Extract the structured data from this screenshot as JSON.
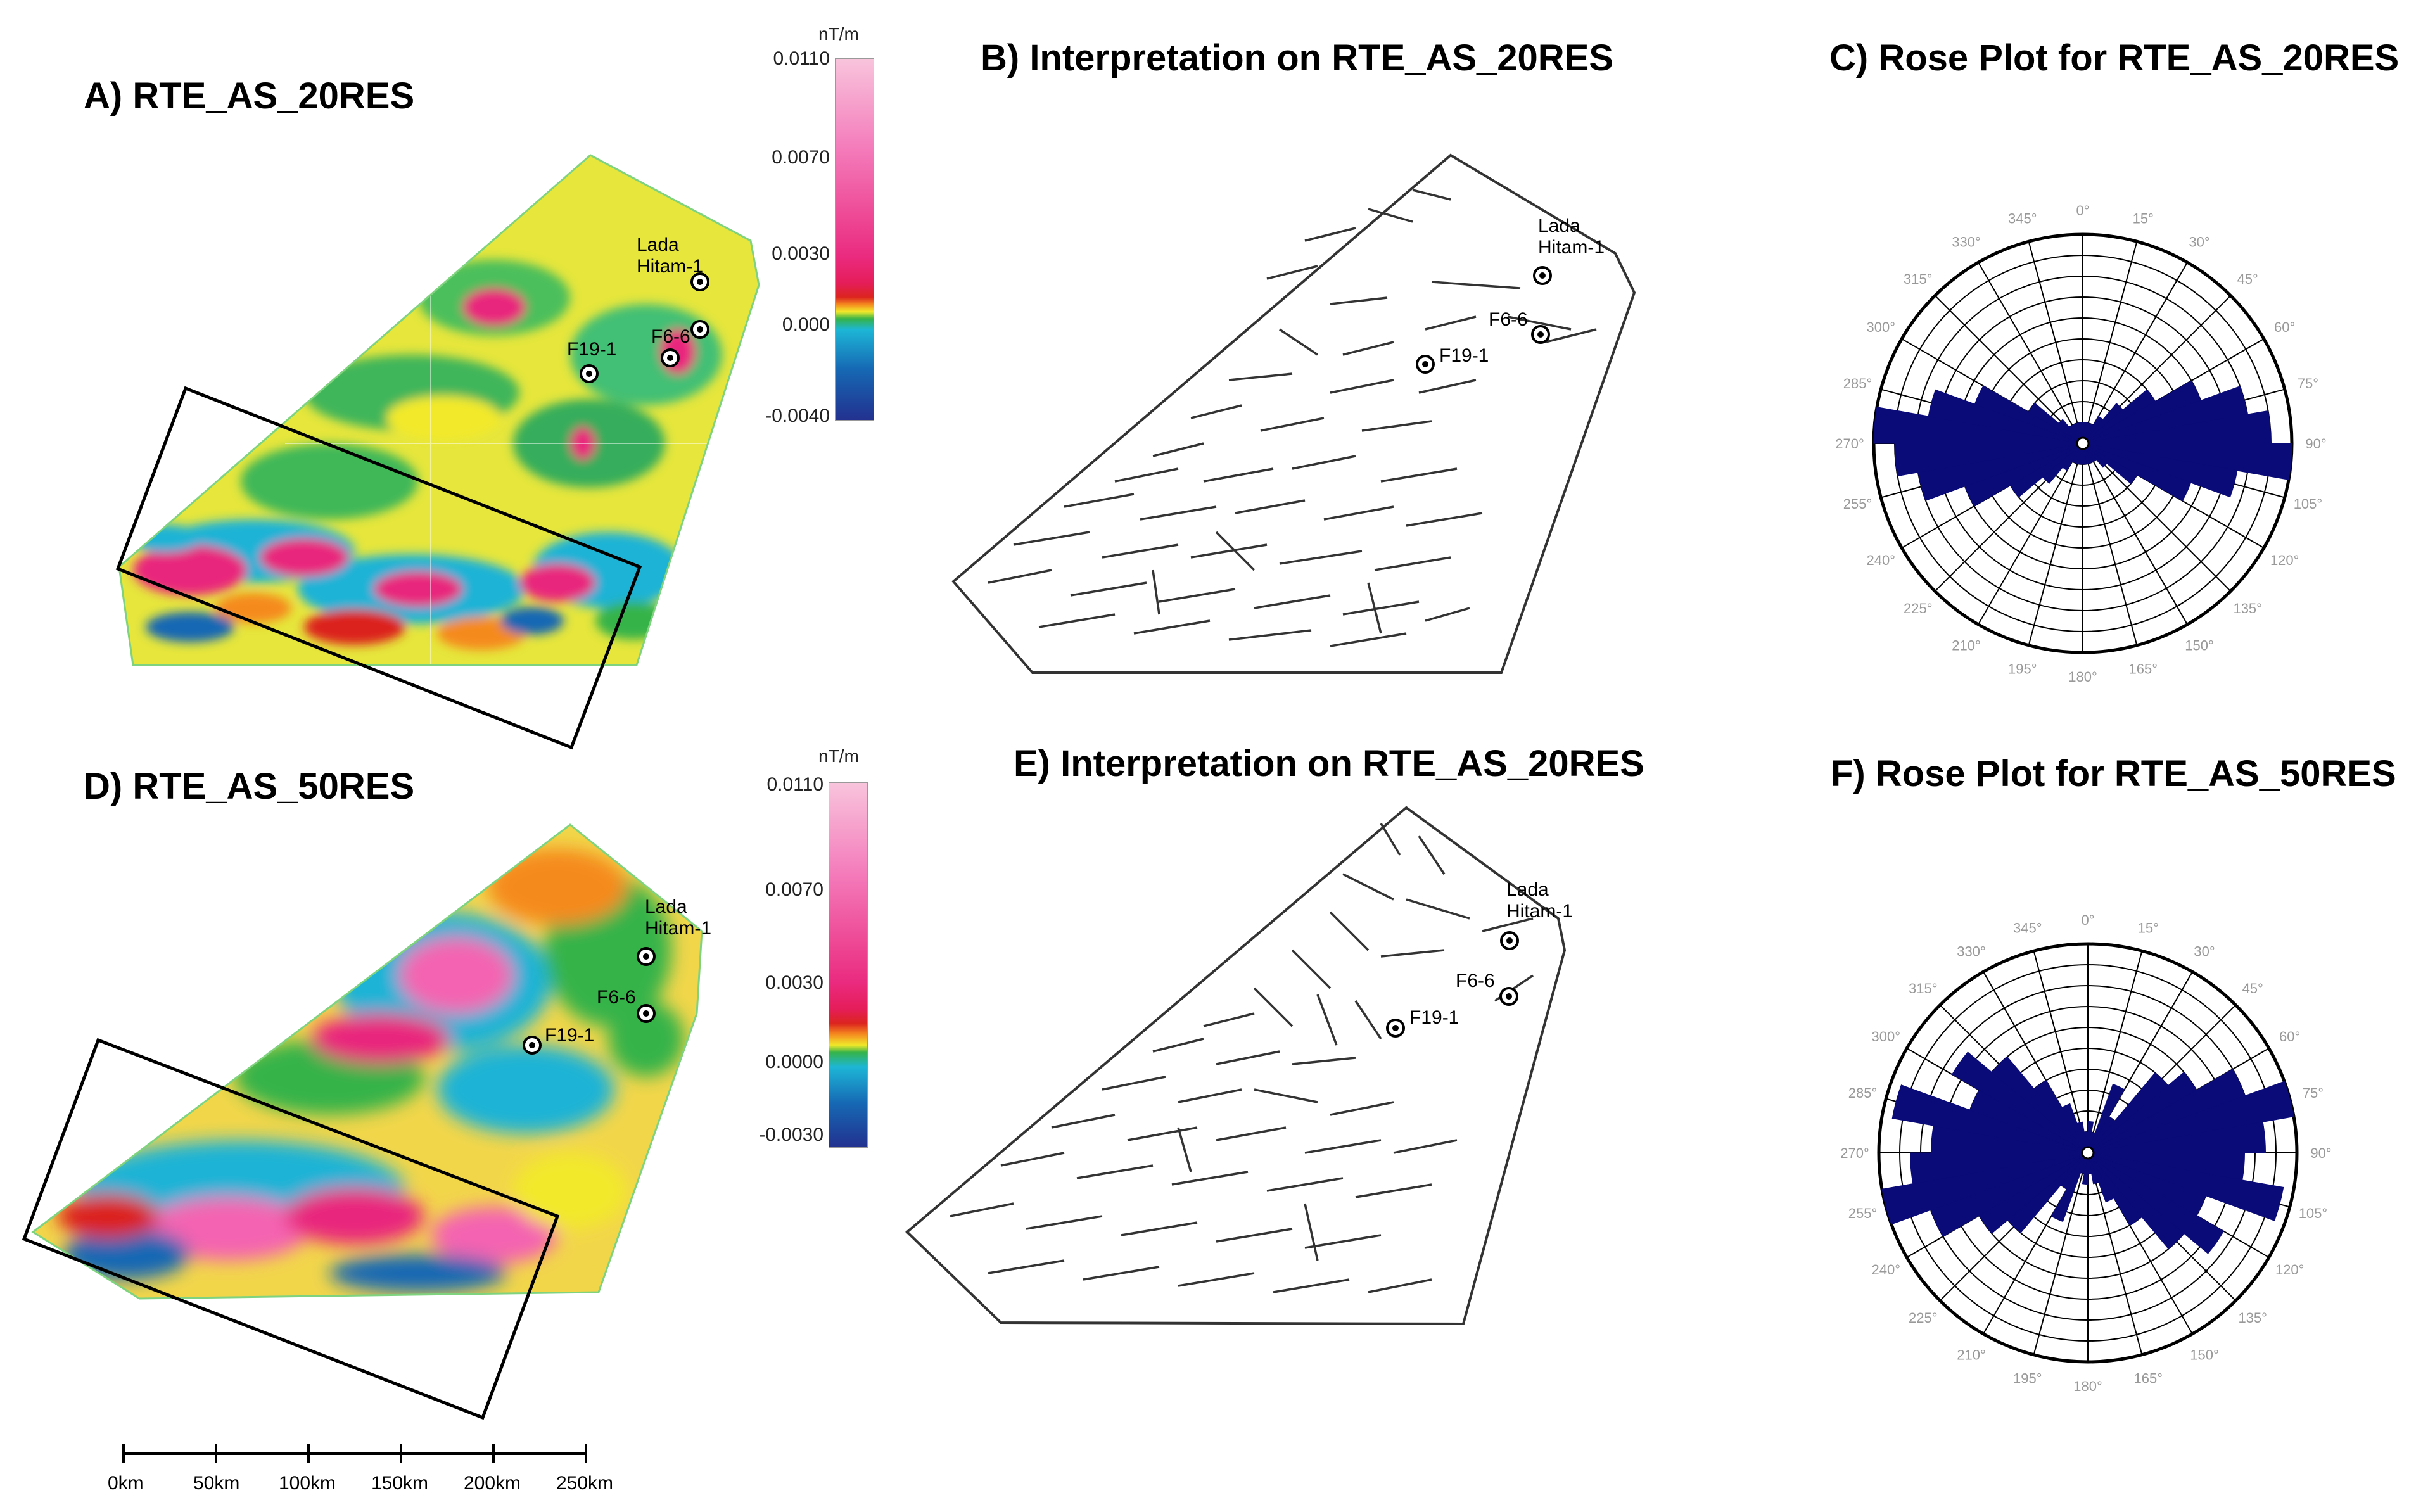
{
  "panels": {
    "a_title": "A) RTE_AS_20RES",
    "b_title": "B) Interpretation on RTE_AS_20RES",
    "c_title": "C) Rose Plot for RTE_AS_20RES",
    "d_title": "D) RTE_AS_50RES",
    "e_title": "E) Interpretation on RTE_AS_20RES",
    "f_title": "F) Rose Plot for RTE_AS_50RES"
  },
  "colorbar_top": {
    "unit": "nT/m",
    "ticks": [
      "0.0110",
      "0.0070",
      "0.0030",
      "0.000",
      "-0.0040"
    ]
  },
  "colorbar_bottom": {
    "unit": "nT/m",
    "ticks": [
      "0.0110",
      "0.0070",
      "0.0030",
      "0.0000",
      "-0.0030"
    ]
  },
  "wells": {
    "lada_line1": "Lada",
    "lada_line2": "Hitam-1",
    "f6": "F6-6",
    "f19": "F19-1"
  },
  "scale_bar": {
    "labels": [
      "0km",
      "50km",
      "100km",
      "150km",
      "200km",
      "250km"
    ]
  },
  "rose_angles": [
    "0°",
    "15°",
    "30°",
    "45°",
    "60°",
    "75°",
    "90°",
    "105°",
    "120°",
    "135°",
    "150°",
    "165°",
    "180°",
    "195°",
    "210°",
    "225°",
    "240°",
    "255°",
    "270°",
    "285°",
    "300°",
    "315°",
    "330°",
    "345°"
  ],
  "rose_c": {
    "bin_deg": 10,
    "petals": [
      2,
      2,
      2,
      3,
      5,
      8,
      12,
      16,
      18,
      20,
      15,
      11,
      6,
      3,
      2,
      2,
      2,
      2
    ]
  },
  "rose_f": {
    "bin_deg": 10,
    "petals": [
      3,
      2,
      7,
      4,
      10,
      12,
      16,
      20,
      17,
      15,
      19,
      12,
      15,
      12,
      8,
      5,
      3,
      2
    ]
  },
  "colors": {
    "petal": "#0a0a78",
    "colorbar": [
      "#f8b7d3",
      "#f463b1",
      "#ea2a7e",
      "#e51d5a",
      "#dc241f",
      "#f58a1f",
      "#f2e92a",
      "#35b34a",
      "#1db6d6",
      "#1668b4",
      "#22318f"
    ]
  }
}
